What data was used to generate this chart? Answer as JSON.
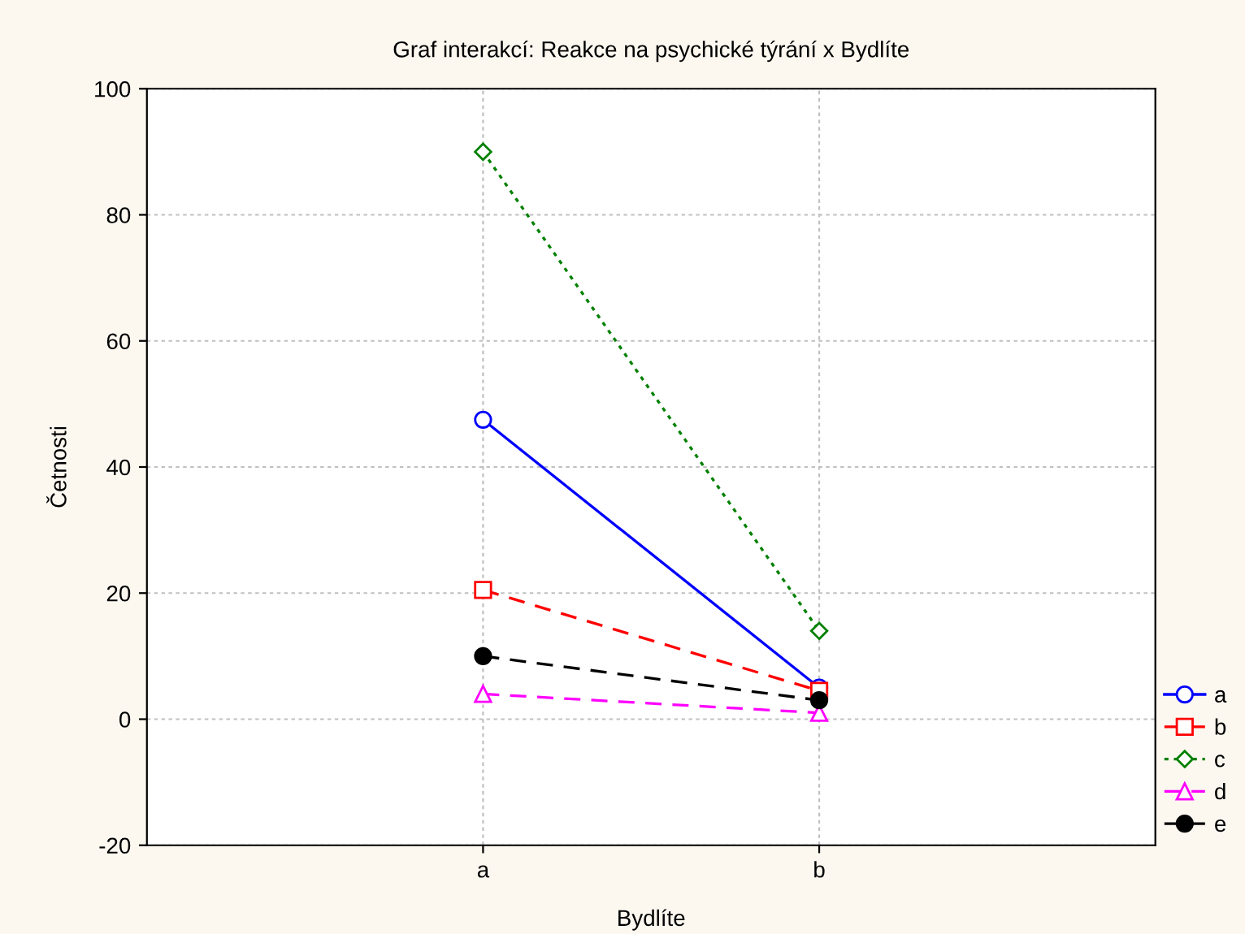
{
  "chart_data": {
    "type": "line",
    "title": "Graf interakcí: Reakce na psychické týrání x Bydlíte",
    "xlabel": "Bydlíte",
    "ylabel": "Četnosti",
    "categories": [
      "a",
      "b"
    ],
    "series": [
      {
        "name": "a",
        "color": "#0000ff",
        "values": [
          47.5,
          5
        ],
        "marker": "circle",
        "line_style": "solid"
      },
      {
        "name": "b",
        "color": "#ff0000",
        "values": [
          20.5,
          4.5
        ],
        "marker": "square",
        "line_style": "dashed"
      },
      {
        "name": "c",
        "color": "#008000",
        "values": [
          90,
          14
        ],
        "marker": "diamond",
        "line_style": "dotted"
      },
      {
        "name": "d",
        "color": "#ff00ff",
        "values": [
          4,
          1
        ],
        "marker": "triangle",
        "line_style": "dashed"
      },
      {
        "name": "e",
        "color": "#000000",
        "values": [
          10,
          3
        ],
        "marker": "circle_filled",
        "line_style": "dashed"
      }
    ],
    "ylim": [
      -20,
      100
    ],
    "yticks": [
      -20,
      0,
      20,
      40,
      60,
      80,
      100
    ],
    "grid": true,
    "legend": "bottom right"
  }
}
